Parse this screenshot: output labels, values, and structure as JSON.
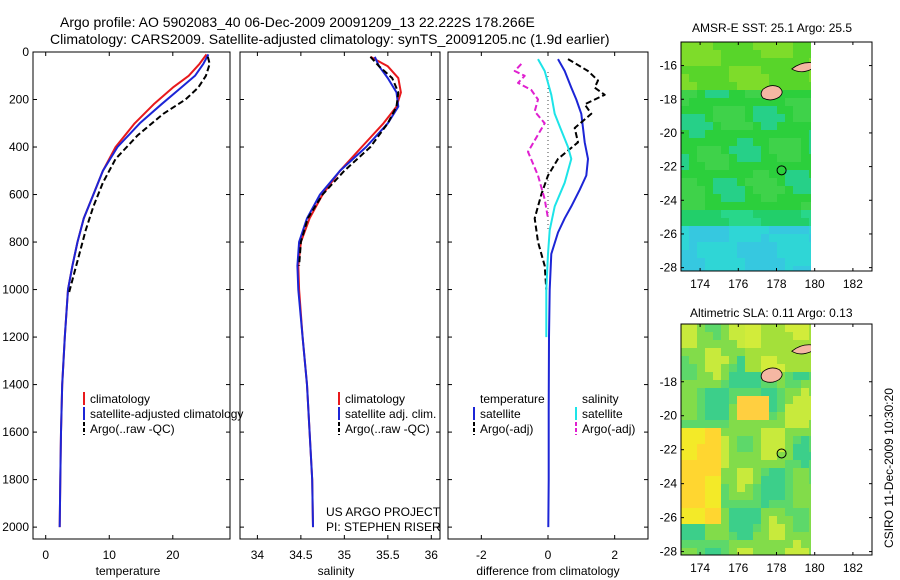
{
  "header": {
    "line1": "Argo profile: AO 5902083_40 06-Dec-2009 20091209_13 22.222S 178.266E",
    "line2": "Climatology: CARS2009. Satellite-adjusted climatology: synTS_20091205.nc (1.9d earlier)"
  },
  "credit": {
    "project": "US ARGO PROJECT",
    "pi": "PI: STEPHEN RISER",
    "stamp": "CSIRO 11-Dec-2009 10:30:20"
  },
  "colors": {
    "climatology": "#e8191c",
    "satellite": "#1c25d6",
    "argo": "#000000",
    "salinity_satellite": "#1de4e8",
    "salinity_argo": "#e020d0",
    "land": "#f5b7a3"
  },
  "chart_data": [
    {
      "type": "line",
      "id": "temperature",
      "xlabel": "temperature",
      "ylabel": "",
      "xlim": [
        -2,
        29
      ],
      "ylim": [
        2050,
        0
      ],
      "xticks": [
        0,
        10,
        20
      ],
      "yticks": [
        0,
        200,
        400,
        600,
        800,
        1000,
        1200,
        1400,
        1600,
        1800,
        2000
      ],
      "legend": [
        "climatology",
        "satellite-adjusted climatology",
        "Argo(..raw -QC)"
      ],
      "legend_placement": "lower-left",
      "series": [
        {
          "name": "climatology",
          "style": "solid",
          "color": "#e8191c",
          "x": [
            25.3,
            24.2,
            22.5,
            20.0,
            17.0,
            14.0,
            11.0,
            9.0,
            7.5,
            6.0,
            5.0,
            4.2,
            3.5,
            3.0,
            2.6,
            2.4,
            2.3,
            2.2
          ],
          "y": [
            10,
            50,
            100,
            150,
            220,
            300,
            400,
            500,
            600,
            700,
            800,
            900,
            1000,
            1200,
            1400,
            1600,
            1800,
            2000
          ]
        },
        {
          "name": "satellite-adjusted climatology",
          "style": "solid",
          "color": "#1c25d6",
          "x": [
            25.6,
            24.8,
            23.5,
            21.3,
            18.2,
            14.8,
            11.3,
            9.0,
            7.5,
            6.0,
            5.0,
            4.2,
            3.5,
            3.0,
            2.6,
            2.4,
            2.3,
            2.2
          ],
          "y": [
            10,
            50,
            100,
            150,
            220,
            300,
            400,
            500,
            600,
            700,
            800,
            900,
            1000,
            1200,
            1400,
            1600,
            1800,
            2000
          ]
        },
        {
          "name": "Argo(..raw -QC)",
          "style": "dashed",
          "color": "#000000",
          "x": [
            25.5,
            25.8,
            25.2,
            24.0,
            22.0,
            18.5,
            14.5,
            11.0,
            9.0,
            7.5,
            6.3,
            5.3,
            4.3,
            3.6
          ],
          "y": [
            20,
            50,
            100,
            150,
            200,
            260,
            350,
            450,
            550,
            650,
            750,
            850,
            950,
            1020
          ]
        }
      ]
    },
    {
      "type": "line",
      "id": "salinity",
      "xlabel": "salinity",
      "ylabel": "",
      "xlim": [
        33.8,
        36.1
      ],
      "ylim": [
        2050,
        0
      ],
      "xticks": [
        34,
        34.5,
        35,
        35.5,
        36
      ],
      "legend": [
        "climatology",
        "satellite adj. clim.",
        "Argo(..raw -QC)"
      ],
      "legend_placement": "lower-right",
      "series": [
        {
          "name": "climatology",
          "style": "solid",
          "color": "#e8191c",
          "x": [
            35.3,
            35.5,
            35.62,
            35.65,
            35.6,
            35.45,
            35.2,
            34.95,
            34.75,
            34.6,
            34.5,
            34.47,
            34.48,
            34.52,
            34.57,
            34.6,
            34.63,
            34.64
          ],
          "y": [
            20,
            60,
            110,
            170,
            230,
            300,
            400,
            500,
            600,
            700,
            800,
            900,
            1000,
            1200,
            1400,
            1600,
            1800,
            2000
          ]
        },
        {
          "name": "satellite adj. clim.",
          "style": "solid",
          "color": "#1c25d6",
          "x": [
            35.35,
            35.4,
            35.5,
            35.6,
            35.62,
            35.5,
            35.25,
            34.95,
            34.72,
            34.57,
            34.48,
            34.46,
            34.47,
            34.52,
            34.57,
            34.6,
            34.63,
            34.64
          ],
          "y": [
            20,
            60,
            110,
            170,
            230,
            300,
            400,
            500,
            600,
            700,
            800,
            900,
            1000,
            1200,
            1400,
            1600,
            1800,
            2000
          ]
        },
        {
          "name": "Argo(..raw -QC)",
          "style": "dashed",
          "color": "#000000",
          "x": [
            35.3,
            35.4,
            35.55,
            35.62,
            35.6,
            35.5,
            35.3,
            35.0,
            34.75,
            34.58,
            34.5,
            34.48
          ],
          "y": [
            20,
            60,
            110,
            170,
            230,
            300,
            400,
            500,
            600,
            700,
            800,
            900
          ]
        }
      ]
    },
    {
      "type": "line",
      "id": "difference",
      "xlabel": "difference from climatology",
      "ylabel": "",
      "xlim": [
        -3,
        3
      ],
      "ylim": [
        2050,
        0
      ],
      "xticks": [
        -2,
        0,
        2
      ],
      "legend": [
        "temperature",
        "satellite",
        "Argo(-adj)",
        "salinity",
        "satellite",
        "Argo(-adj)"
      ],
      "legend_placement": "lower-center",
      "series": [
        {
          "name": "temperature satellite",
          "style": "solid",
          "color": "#1c25d6",
          "x": [
            0.3,
            0.5,
            0.7,
            0.85,
            1.0,
            1.05,
            1.1,
            1.2,
            1.15,
            0.95,
            0.7,
            0.5,
            0.3,
            0.1,
            0.05,
            0.03,
            0.02,
            0.02,
            0.01
          ],
          "y": [
            30,
            80,
            150,
            200,
            260,
            320,
            380,
            450,
            520,
            580,
            650,
            700,
            760,
            850,
            1000,
            1200,
            1500,
            1800,
            2000
          ]
        },
        {
          "name": "temperature Argo(-adj)",
          "style": "dashed",
          "color": "#000000",
          "x": [
            0.6,
            1.2,
            1.5,
            1.4,
            1.7,
            1.1,
            1.3,
            0.8,
            0.9,
            0.3,
            0.0,
            -0.2,
            -0.4,
            -0.3,
            -0.1,
            -0.05
          ],
          "y": [
            30,
            80,
            120,
            150,
            180,
            220,
            260,
            320,
            380,
            450,
            520,
            600,
            700,
            800,
            900,
            1000
          ]
        },
        {
          "name": "salinity satellite",
          "style": "solid",
          "color": "#1de4e8",
          "x": [
            -0.3,
            -0.1,
            0.0,
            0.1,
            0.2,
            0.4,
            0.6,
            0.7,
            0.5,
            0.2,
            0.05,
            0.0,
            -0.05,
            -0.05
          ],
          "y": [
            30,
            80,
            130,
            180,
            260,
            330,
            400,
            450,
            550,
            650,
            750,
            850,
            1000,
            1200
          ]
        },
        {
          "name": "salinity Argo(-adj)",
          "style": "dashed",
          "color": "#e020d0",
          "x": [
            -0.8,
            -1.0,
            -0.7,
            -0.9,
            -0.5,
            -0.3,
            -0.4,
            -0.1,
            -0.6,
            -0.3,
            -0.1,
            0.0
          ],
          "y": [
            50,
            80,
            100,
            130,
            160,
            200,
            250,
            300,
            420,
            520,
            620,
            700
          ]
        }
      ]
    },
    {
      "type": "heatmap",
      "id": "sst-map",
      "title": "AMSR-E SST: 25.1 Argo: 25.5",
      "xlim": [
        173,
        183
      ],
      "ylim": [
        -28.2,
        -14.6
      ],
      "xticks": [
        174,
        176,
        178,
        180,
        182
      ],
      "yticks": [
        -16,
        -18,
        -20,
        -22,
        -24,
        -26,
        -28
      ],
      "argo_position": {
        "lon": 178.266,
        "lat": -22.222
      }
    },
    {
      "type": "heatmap",
      "id": "sla-map",
      "title": "Altimetric SLA: 0.11 Argo: 0.13",
      "xlim": [
        173,
        183
      ],
      "ylim": [
        -28.2,
        -14.6
      ],
      "xticks": [
        174,
        176,
        178,
        180,
        182
      ],
      "yticks": [
        -18,
        -20,
        -22,
        -24,
        -26,
        -28
      ],
      "argo_position": {
        "lon": 178.266,
        "lat": -22.222
      }
    }
  ]
}
